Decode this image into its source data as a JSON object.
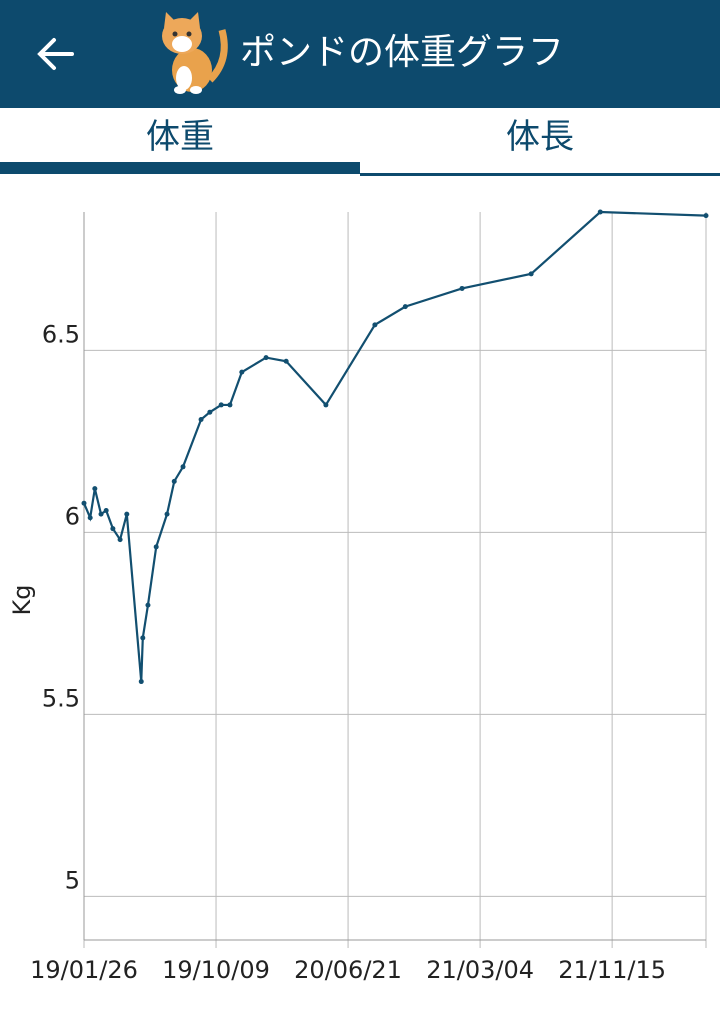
{
  "header": {
    "title": "ポンドの体重グラフ"
  },
  "tabs": [
    "体重",
    "体長"
  ],
  "chart_data": {
    "type": "line",
    "y_label": "Kg",
    "color": "#124f70",
    "x": [
      "2019-01-26",
      "2019-02-07",
      "2019-02-16",
      "2019-02-28",
      "2019-03-10",
      "2019-03-23",
      "2019-04-06",
      "2019-04-19",
      "2019-05-17",
      "2019-05-20",
      "2019-05-30",
      "2019-06-15",
      "2019-07-06",
      "2019-07-20",
      "2019-08-06",
      "2019-09-10",
      "2019-09-27",
      "2019-10-19",
      "2019-11-05",
      "2019-11-28",
      "2020-01-14",
      "2020-02-22",
      "2020-05-09",
      "2020-08-12",
      "2020-10-10",
      "2021-01-28",
      "2021-06-11",
      "2021-10-23",
      "2022-05-16"
    ],
    "values": [
      6.08,
      6.04,
      6.12,
      6.05,
      6.06,
      6.01,
      5.98,
      6.05,
      5.59,
      5.71,
      5.8,
      5.96,
      6.05,
      6.14,
      6.18,
      6.31,
      6.33,
      6.35,
      6.35,
      6.44,
      6.48,
      6.47,
      6.35,
      6.57,
      6.62,
      6.67,
      6.71,
      6.88,
      6.87
    ],
    "xlim": [
      "2019-01-26",
      "2022-05-16"
    ],
    "xticks": [
      {
        "value": "2019-01-26",
        "label": "19/01/26"
      },
      {
        "value": "2019-10-09",
        "label": "19/10/09"
      },
      {
        "value": "2020-06-21",
        "label": "20/06/21"
      },
      {
        "value": "2021-03-04",
        "label": "21/03/04"
      },
      {
        "value": "2021-11-15",
        "label": "21/11/15"
      }
    ],
    "ylim": [
      4.88,
      6.88
    ],
    "yticks": [
      5,
      5.5,
      6,
      6.5
    ],
    "grid": true
  }
}
